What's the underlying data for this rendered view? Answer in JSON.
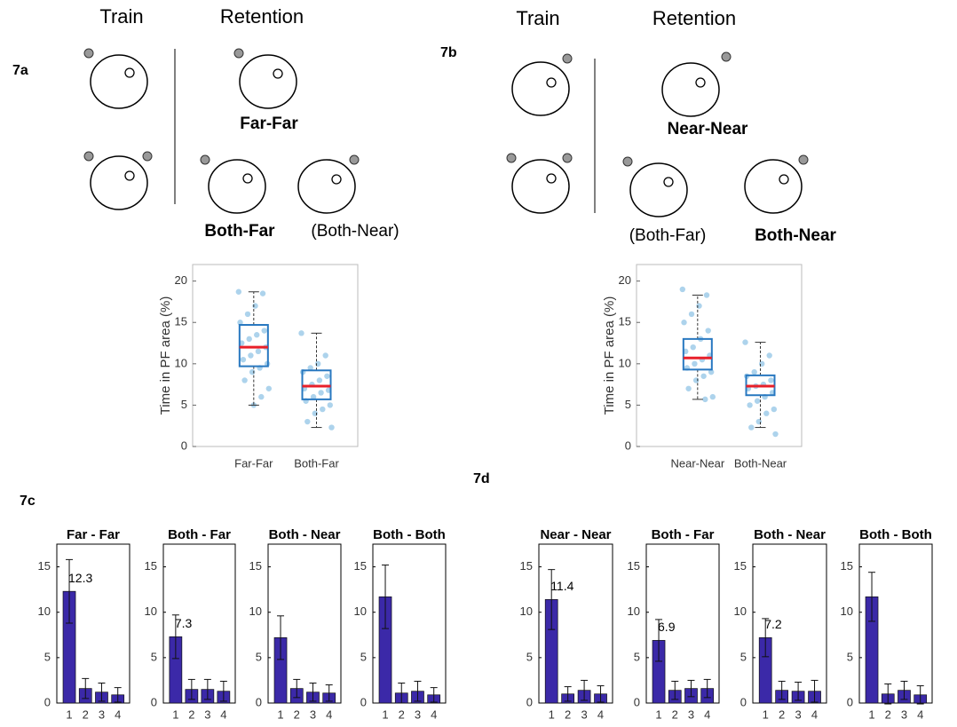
{
  "panel_labels": [
    "7a",
    "7b",
    "7c",
    "7d"
  ],
  "schematics": [
    {
      "train": "Train",
      "retention": "Retention",
      "conditions": [
        "Far-Far",
        "Both-Far",
        "(Both-Near)"
      ]
    },
    {
      "train": "Train",
      "retention": "Retention",
      "conditions": [
        "Near-Near",
        "(Both-Far)",
        "Both-Near"
      ]
    }
  ],
  "chart_data": [
    {
      "type": "box",
      "ylabel": "Time in PF area (%)",
      "categories": [
        "Far-Far",
        "Both-Far"
      ],
      "stats": [
        [
          5,
          9.7,
          12,
          14.7,
          18.7
        ],
        [
          2.3,
          5.7,
          7.3,
          9.2,
          13.7
        ]
      ],
      "points": [
        [
          18.7,
          18.5,
          17,
          16,
          15,
          14,
          13.5,
          13,
          12.5,
          12,
          11.5,
          11,
          10.5,
          10,
          9.5,
          9,
          8,
          7,
          6,
          5
        ],
        [
          13.7,
          11,
          10,
          9.5,
          9,
          8.5,
          8,
          7.5,
          7,
          6.8,
          6.5,
          6,
          5.5,
          5,
          4.5,
          4,
          3,
          2.3
        ]
      ],
      "box_color": "#2878c0",
      "median_color": "#e8202a",
      "point_color": "#9fcbe9",
      "ylim": [
        0,
        22
      ],
      "yticks": [
        0,
        5,
        10,
        15,
        20
      ]
    },
    {
      "type": "box",
      "ylabel": "Time in PF area (%)",
      "categories": [
        "Near-Near",
        "Both-Near"
      ],
      "stats": [
        [
          5.7,
          9.3,
          10.7,
          13,
          18.3
        ],
        [
          2.3,
          6.2,
          7.3,
          8.6,
          12.6
        ]
      ],
      "points": [
        [
          19,
          18.3,
          17,
          16,
          15,
          14,
          13,
          12,
          11.5,
          11,
          10.5,
          10,
          9.5,
          9,
          8.5,
          8,
          7,
          6,
          5.7
        ],
        [
          12.6,
          11,
          10,
          9,
          8.5,
          8,
          7.5,
          7.3,
          7,
          6.5,
          6,
          5.5,
          5,
          4.5,
          4,
          3,
          2.3,
          1.5
        ]
      ],
      "box_color": "#2878c0",
      "median_color": "#e8202a",
      "point_color": "#9fcbe9",
      "ylim": [
        0,
        22
      ],
      "yticks": [
        0,
        5,
        10,
        15,
        20
      ]
    },
    {
      "type": "bar",
      "title": "Far - Far",
      "categories": [
        "1",
        "2",
        "3",
        "4"
      ],
      "values": [
        12.3,
        1.6,
        1.2,
        0.9
      ],
      "errors": [
        3.5,
        1.1,
        1.0,
        0.8
      ],
      "value_labels": [
        "12.3",
        null,
        null,
        null
      ],
      "color": "#3b29a8",
      "ylim": [
        0,
        17.5
      ],
      "yticks": [
        0,
        5,
        10,
        15
      ]
    },
    {
      "type": "bar",
      "title": "Both - Far",
      "categories": [
        "1",
        "2",
        "3",
        "4"
      ],
      "values": [
        7.3,
        1.5,
        1.5,
        1.3
      ],
      "errors": [
        2.4,
        1.1,
        1.1,
        1.1
      ],
      "value_labels": [
        "7.3",
        null,
        null,
        null
      ],
      "color": "#3b29a8",
      "ylim": [
        0,
        17.5
      ],
      "yticks": [
        0,
        5,
        10,
        15
      ]
    },
    {
      "type": "bar",
      "title": "Both - Near",
      "categories": [
        "1",
        "2",
        "3",
        "4"
      ],
      "values": [
        7.2,
        1.6,
        1.2,
        1.1
      ],
      "errors": [
        2.4,
        1.0,
        1.0,
        0.9
      ],
      "color": "#3b29a8",
      "ylim": [
        0,
        17.5
      ],
      "yticks": [
        0,
        5,
        10,
        15
      ]
    },
    {
      "type": "bar",
      "title": "Both - Both",
      "categories": [
        "1",
        "2",
        "3",
        "4"
      ],
      "values": [
        11.7,
        1.1,
        1.3,
        0.9
      ],
      "errors": [
        3.5,
        1.1,
        1.1,
        0.8
      ],
      "color": "#3b29a8",
      "ylim": [
        0,
        17.5
      ],
      "yticks": [
        0,
        5,
        10,
        15
      ]
    },
    {
      "type": "bar",
      "title": "Near - Near",
      "categories": [
        "1",
        "2",
        "3",
        "4"
      ],
      "values": [
        11.4,
        1.0,
        1.4,
        1.0
      ],
      "errors": [
        3.3,
        0.8,
        1.1,
        0.9
      ],
      "value_labels": [
        "11.4",
        null,
        null,
        null
      ],
      "color": "#3b29a8",
      "ylim": [
        0,
        17.5
      ],
      "yticks": [
        0,
        5,
        10,
        15
      ]
    },
    {
      "type": "bar",
      "title": "Both - Far",
      "categories": [
        "1",
        "2",
        "3",
        "4"
      ],
      "values": [
        6.9,
        1.4,
        1.6,
        1.6
      ],
      "errors": [
        2.3,
        1.0,
        0.9,
        1.0
      ],
      "value_labels": [
        "6.9",
        null,
        null,
        null
      ],
      "color": "#3b29a8",
      "ylim": [
        0,
        17.5
      ],
      "yticks": [
        0,
        5,
        10,
        15
      ]
    },
    {
      "type": "bar",
      "title": "Both - Near",
      "categories": [
        "1",
        "2",
        "3",
        "4"
      ],
      "values": [
        7.2,
        1.4,
        1.3,
        1.3
      ],
      "errors": [
        2.1,
        1.0,
        1.0,
        1.2
      ],
      "value_labels": [
        "7.2",
        null,
        null,
        null
      ],
      "color": "#3b29a8",
      "ylim": [
        0,
        17.5
      ],
      "yticks": [
        0,
        5,
        10,
        15
      ]
    },
    {
      "type": "bar",
      "title": "Both - Both",
      "categories": [
        "1",
        "2",
        "3",
        "4"
      ],
      "values": [
        11.7,
        1.0,
        1.4,
        0.9
      ],
      "errors": [
        2.7,
        1.1,
        1.0,
        1.0
      ],
      "color": "#3b29a8",
      "ylim": [
        0,
        17.5
      ],
      "yticks": [
        0,
        5,
        10,
        15
      ]
    }
  ]
}
